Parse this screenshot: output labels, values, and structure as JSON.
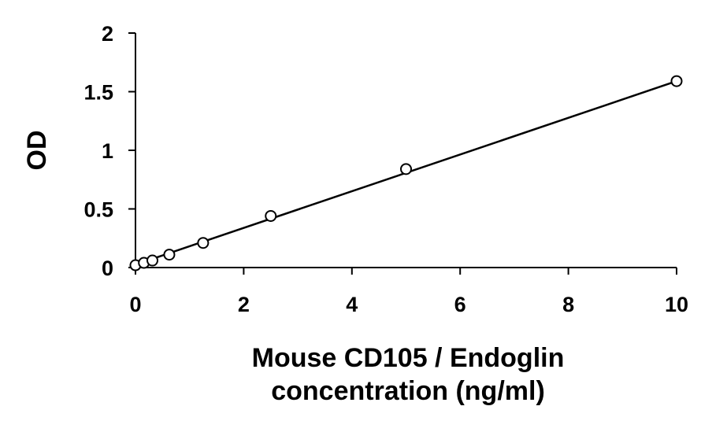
{
  "chart_data": {
    "type": "scatter",
    "title": "",
    "xlabel_lines": [
      "Mouse CD105 / Endoglin",
      "concentration (ng/ml)"
    ],
    "ylabel": "OD",
    "xlim": [
      0,
      10
    ],
    "ylim": [
      0,
      2
    ],
    "xticks": [
      0,
      2,
      4,
      6,
      8,
      10
    ],
    "yticks": [
      0,
      0.5,
      1,
      1.5,
      2
    ],
    "xtick_labels": [
      "0",
      "2",
      "4",
      "6",
      "8",
      "10"
    ],
    "ytick_labels": [
      "0",
      "0.5",
      "1",
      "1.5",
      "2"
    ],
    "grid": false,
    "legend": "none",
    "series": [
      {
        "marker": "open-circle",
        "x": [
          0,
          0.156,
          0.313,
          0.625,
          1.25,
          2.5,
          5,
          10
        ],
        "y": [
          0.02,
          0.04,
          0.06,
          0.11,
          0.21,
          0.44,
          0.84,
          1.59
        ]
      }
    ],
    "trendline": {
      "type": "linear",
      "x": [
        0,
        10
      ],
      "y": [
        0.025,
        1.59
      ]
    },
    "colors": {
      "axis": "#000000",
      "marker_stroke": "#000000",
      "marker_fill": "#ffffff",
      "line": "#000000"
    }
  }
}
